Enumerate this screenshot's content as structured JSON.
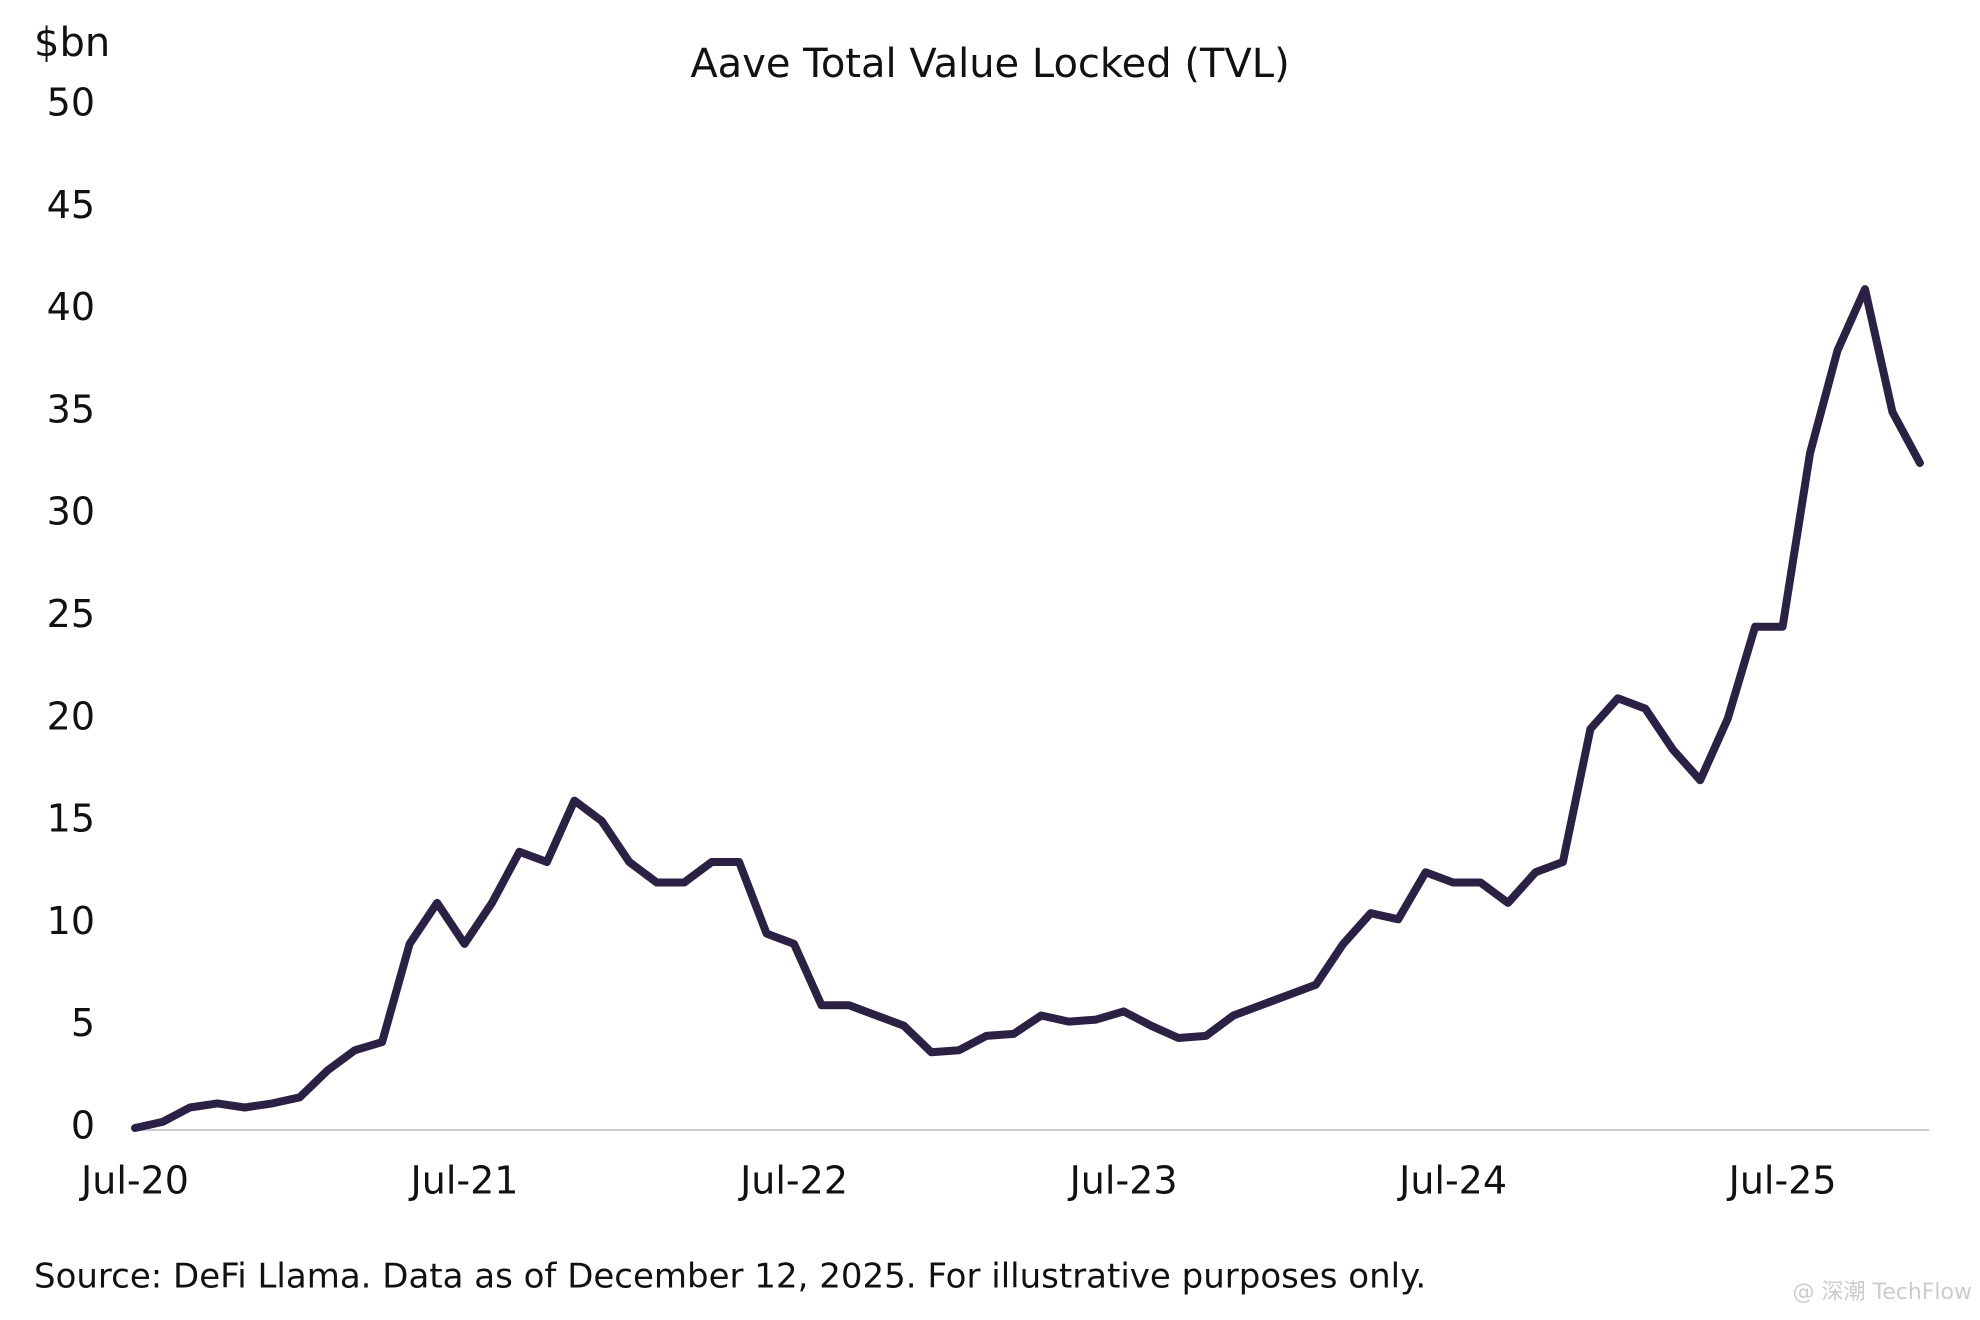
{
  "chart_data": {
    "type": "line",
    "title": "Aave Total Value Locked (TVL)",
    "y_label": "$bn",
    "source": "Source: DeFi Llama. Data as of December 12, 2025. For illustrative purposes only.",
    "watermark": "@ 深潮 TechFlow",
    "categories": [
      "Jul-20",
      null,
      null,
      null,
      null,
      null,
      null,
      null,
      null,
      null,
      null,
      null,
      "Jul-21",
      null,
      null,
      null,
      null,
      null,
      null,
      null,
      null,
      null,
      null,
      null,
      "Jul-22",
      null,
      null,
      null,
      null,
      null,
      null,
      null,
      null,
      null,
      null,
      null,
      "Jul-23",
      null,
      null,
      null,
      null,
      null,
      null,
      null,
      null,
      null,
      null,
      null,
      "Jul-24",
      null,
      null,
      null,
      null,
      null,
      null,
      null,
      null,
      null,
      null,
      null,
      "Jul-25",
      null,
      null,
      null,
      null,
      null
    ],
    "series": [
      {
        "name": "TVL",
        "color": "#2a2145",
        "values": [
          0,
          0.3,
          1.0,
          1.2,
          1.0,
          1.2,
          1.5,
          2.8,
          3.8,
          4.2,
          9,
          11,
          9,
          11,
          13.5,
          13,
          16,
          15,
          13,
          12,
          12,
          13,
          13,
          9.5,
          9,
          6,
          6,
          5.5,
          5,
          3.7,
          3.8,
          4.5,
          4.6,
          5.5,
          5.2,
          5.3,
          5.7,
          5,
          4.4,
          4.5,
          5.5,
          6,
          6.5,
          7,
          9,
          10.5,
          10.2,
          12.5,
          12,
          12,
          11,
          12.5,
          13,
          19.5,
          21,
          20.5,
          18.5,
          17,
          20,
          24.5,
          24.5,
          33,
          38,
          41,
          35,
          32.5
        ]
      }
    ],
    "ylim": [
      0,
      50
    ],
    "yticks": [
      0,
      5,
      10,
      15,
      20,
      25,
      30,
      35,
      40,
      45,
      50
    ],
    "grid": false
  }
}
